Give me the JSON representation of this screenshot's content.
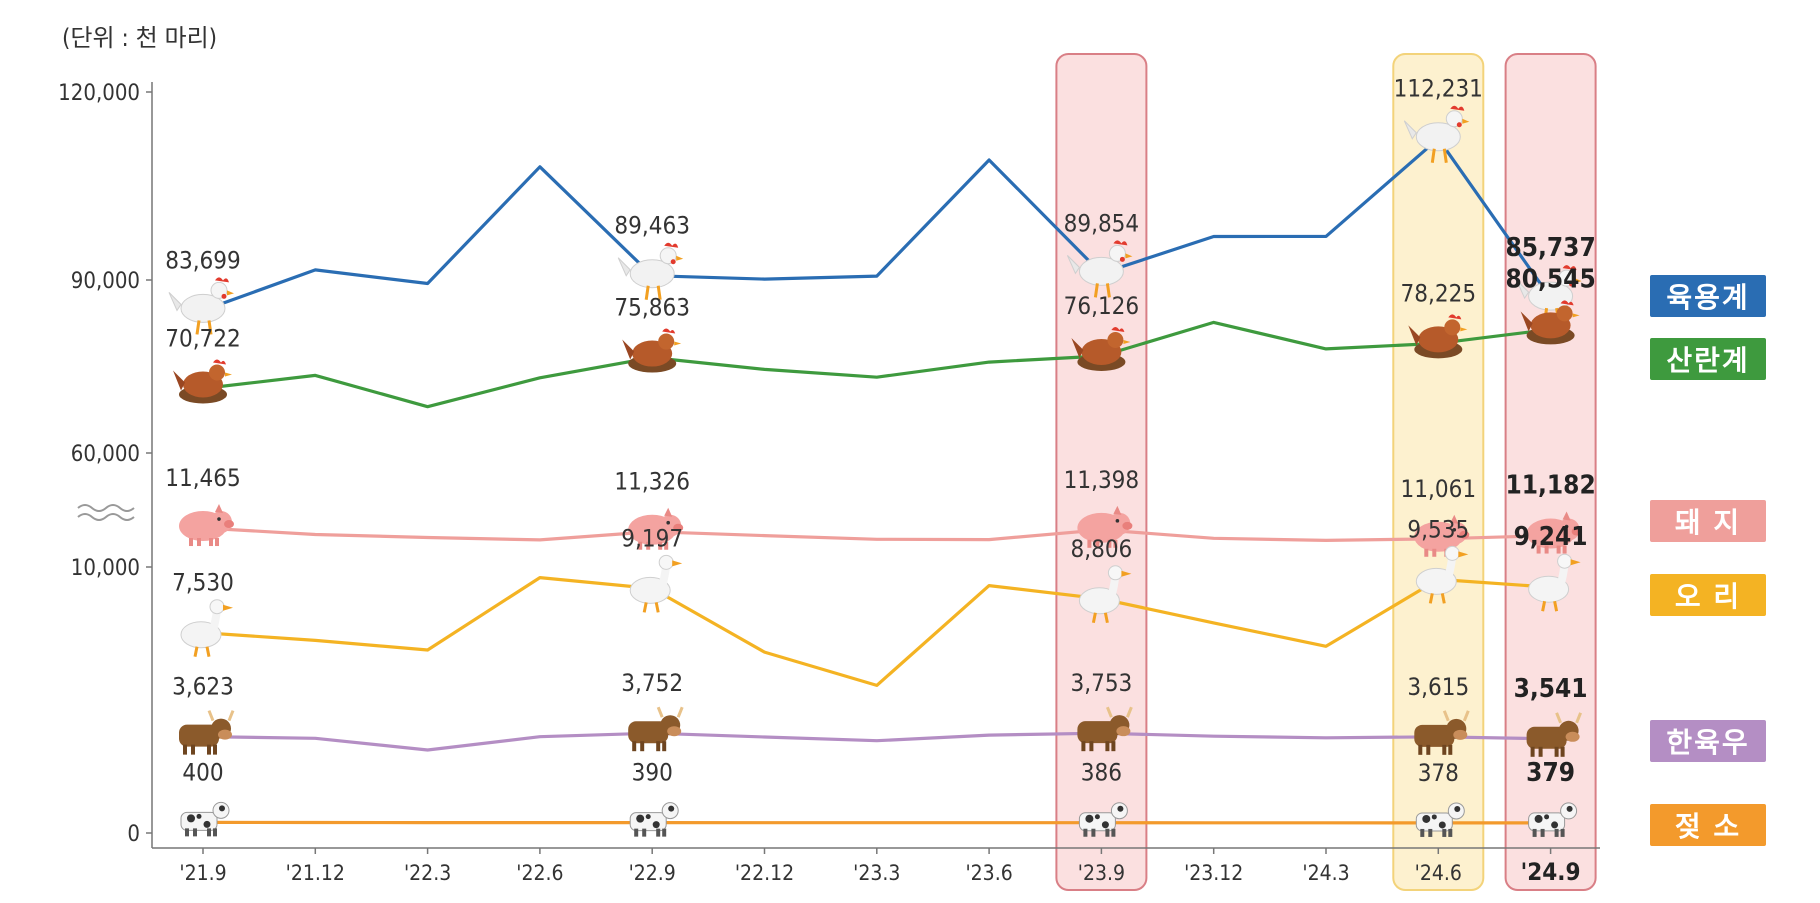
{
  "unit_label": "(단위 : 천 마리)",
  "chart_data": {
    "type": "line",
    "title": "",
    "categories": [
      "'21.9",
      "'21.12",
      "'22.3",
      "'22.6",
      "'22.9",
      "'22.12",
      "'23.3",
      "'23.6",
      "'23.9",
      "'23.12",
      "'24.3",
      "'24.6",
      "'24.9"
    ],
    "y_ticks": [
      "120,000",
      "90,000",
      "60,000",
      "10,000",
      "0"
    ],
    "axis_break": true,
    "highlights": [
      {
        "category": "'23.9",
        "color": "#fbe0e0"
      },
      {
        "category": "'24.6",
        "color": "#fdf1cf"
      },
      {
        "category": "'24.9",
        "color": "#fbe0e0"
      }
    ],
    "series": [
      {
        "name": "육용계",
        "color": "#2a6db3",
        "icon": "chicken-icon",
        "values": [
          83699,
          90430,
          88180,
          107560,
          89463,
          88900,
          89400,
          108700,
          89854,
          95990,
          96000,
          112231,
          85737
        ],
        "labels": {
          "0": "83,699",
          "4": "89,463",
          "8": "89,854",
          "11": "112,231",
          "12": "85,737"
        }
      },
      {
        "name": "산란계",
        "color": "#3e9a3e",
        "icon": "hen-icon",
        "values": [
          70722,
          72900,
          67700,
          72500,
          75863,
          73900,
          72600,
          75100,
          76126,
          81700,
          77300,
          78225,
          80545
        ],
        "labels": {
          "0": "70,722",
          "4": "75,863",
          "8": "76,126",
          "11": "78,225",
          "12": "80,545"
        }
      },
      {
        "name": "돼지",
        "label": "돼    지",
        "color": "#ef9f9b",
        "icon": "pig-icon",
        "values": [
          11465,
          11220,
          11110,
          11020,
          11326,
          11180,
          11040,
          11030,
          11398,
          11080,
          11000,
          11061,
          11182
        ],
        "labels": {
          "0": "11,465",
          "4": "11,326",
          "8": "11,398",
          "11": "11,061",
          "12": "11,182"
        }
      },
      {
        "name": "오리",
        "label": "오    리",
        "color": "#f4b323",
        "icon": "duck-icon",
        "values": [
          7530,
          7240,
          6880,
          9600,
          9197,
          6800,
          5550,
          9300,
          8806,
          7900,
          7020,
          9535,
          9241
        ],
        "labels": {
          "0": "7,530",
          "4": "9,197",
          "8": "8,806",
          "11": "9,535",
          "12": "9,241"
        }
      },
      {
        "name": "한육우",
        "color": "#b48ec4",
        "icon": "cow-icon",
        "values": [
          3623,
          3560,
          3120,
          3620,
          3752,
          3610,
          3470,
          3680,
          3753,
          3640,
          3580,
          3615,
          3541
        ],
        "labels": {
          "0": "3,623",
          "4": "3,752",
          "8": "3,753",
          "11": "3,615",
          "12": "3,541"
        }
      },
      {
        "name": "젖소",
        "label": "젖    소",
        "color": "#f39a2c",
        "icon": "dairy-cow-icon",
        "values": [
          400,
          395,
          392,
          392,
          390,
          388,
          387,
          386,
          386,
          384,
          382,
          378,
          379
        ],
        "labels": {
          "0": "400",
          "4": "390",
          "8": "386",
          "11": "378",
          "12": "379"
        }
      }
    ]
  }
}
